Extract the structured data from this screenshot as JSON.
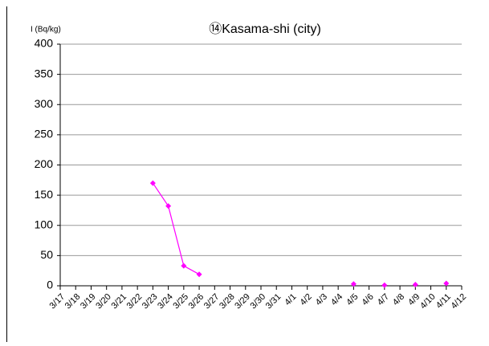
{
  "chart_data": {
    "type": "line",
    "title": "⑭Kasama-shi (city)",
    "y_label": "I (Bq/kg)",
    "categories": [
      "3/17",
      "3/18",
      "3/19",
      "3/20",
      "3/21",
      "3/22",
      "3/23",
      "3/24",
      "3/25",
      "3/26",
      "3/27",
      "3/28",
      "3/29",
      "3/30",
      "3/31",
      "4/1",
      "4/2",
      "4/3",
      "4/4",
      "4/5",
      "4/6",
      "4/7",
      "4/8",
      "4/9",
      "4/10",
      "4/11",
      "4/12"
    ],
    "series": [
      {
        "name": "I",
        "color": "#ff00ff",
        "values": [
          null,
          null,
          null,
          null,
          null,
          null,
          170,
          132,
          33,
          19,
          null,
          null,
          null,
          null,
          null,
          null,
          null,
          null,
          null,
          3,
          null,
          1,
          null,
          2,
          null,
          4,
          null
        ]
      }
    ],
    "ylim": [
      0,
      400
    ],
    "yticks": [
      0,
      50,
      100,
      150,
      200,
      250,
      300,
      350,
      400
    ],
    "grid": true
  }
}
